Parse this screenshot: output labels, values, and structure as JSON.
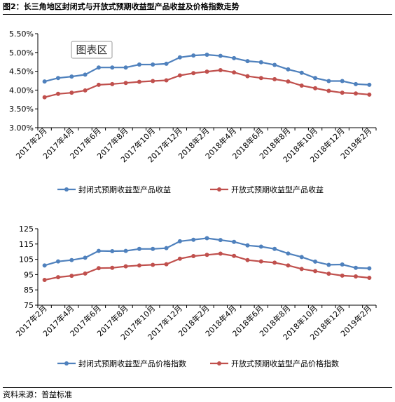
{
  "figure": {
    "title": "图2：长三角地区封闭式与开放式预期收益型产品收益及价格指数走势",
    "source": "资料来源：普益标准"
  },
  "watermark": "图表区",
  "chart_data": [
    {
      "type": "line",
      "categories": [
        "2017年2月",
        "2017年3月",
        "2017年4月",
        "2017年5月",
        "2017年6月",
        "2017年7月",
        "2017年8月",
        "2017年9月",
        "2017年10月",
        "2017年11月",
        "2017年12月",
        "2018年1月",
        "2018年2月",
        "2018年3月",
        "2018年4月",
        "2018年5月",
        "2018年6月",
        "2018年7月",
        "2018年8月",
        "2018年9月",
        "2018年10月",
        "2018年11月",
        "2018年12月",
        "2019年1月",
        "2019年2月"
      ],
      "tick_labels": [
        "2017年2月",
        "",
        "2017年4月",
        "",
        "2017年6月",
        "",
        "2017年8月",
        "",
        "2017年10月",
        "",
        "2017年12月",
        "",
        "2018年2月",
        "",
        "2018年4月",
        "",
        "2018年6月",
        "",
        "2018年8月",
        "",
        "2018年10月",
        "",
        "2018年12月",
        "",
        "2019年2月"
      ],
      "ylim": [
        3.0,
        5.5
      ],
      "yticks": [
        "3.00%",
        "3.50%",
        "4.00%",
        "4.50%",
        "5.00%",
        "5.50%"
      ],
      "grid": false,
      "legend_position": "bottom",
      "series": [
        {
          "name": "封闭式预期收益型产品收益",
          "color": "#4f81bd",
          "values": [
            4.23,
            4.32,
            4.36,
            4.41,
            4.6,
            4.6,
            4.6,
            4.68,
            4.68,
            4.7,
            4.87,
            4.92,
            4.94,
            4.91,
            4.85,
            4.77,
            4.74,
            4.67,
            4.55,
            4.46,
            4.32,
            4.24,
            4.24,
            4.16,
            4.14
          ]
        },
        {
          "name": "开放式预期收益型产品收益",
          "color": "#c0504d",
          "values": [
            3.81,
            3.9,
            3.93,
            3.99,
            4.14,
            4.16,
            4.19,
            4.22,
            4.24,
            4.26,
            4.39,
            4.45,
            4.49,
            4.53,
            4.47,
            4.37,
            4.32,
            4.29,
            4.23,
            4.12,
            4.05,
            3.98,
            3.93,
            3.91,
            3.88
          ]
        }
      ]
    },
    {
      "type": "line",
      "categories": [
        "2017年2月",
        "2017年3月",
        "2017年4月",
        "2017年5月",
        "2017年6月",
        "2017年7月",
        "2017年8月",
        "2017年9月",
        "2017年10月",
        "2017年11月",
        "2017年12月",
        "2018年1月",
        "2018年2月",
        "2018年3月",
        "2018年4月",
        "2018年5月",
        "2018年6月",
        "2018年7月",
        "2018年8月",
        "2018年9月",
        "2018年10月",
        "2018年11月",
        "2018年12月",
        "2019年1月",
        "2019年2月"
      ],
      "tick_labels": [
        "2017年2月",
        "",
        "2017年4月",
        "",
        "2017年6月",
        "",
        "2017年8月",
        "",
        "2017年10月",
        "",
        "2017年12月",
        "",
        "2018年2月",
        "",
        "2018年4月",
        "",
        "2018年6月",
        "",
        "2018年8月",
        "",
        "2018年10月",
        "",
        "2018年12月",
        "",
        "2019年2月"
      ],
      "ylim": [
        75,
        125
      ],
      "yticks": [
        "75",
        "85",
        "95",
        "105",
        "115",
        "125"
      ],
      "grid": false,
      "legend_position": "bottom",
      "series": [
        {
          "name": "封闭式预期收益型产品价格指数",
          "color": "#4f81bd",
          "values": [
            101.0,
            103.6,
            104.5,
            106.0,
            110.5,
            110.3,
            110.5,
            111.8,
            111.8,
            112.3,
            116.8,
            117.8,
            118.8,
            117.6,
            116.4,
            114.1,
            113.3,
            111.8,
            108.8,
            106.5,
            103.5,
            101.4,
            101.6,
            99.4,
            99.1
          ]
        },
        {
          "name": "开放式预期收益型产品价格指数",
          "color": "#c0504d",
          "values": [
            91.5,
            93.3,
            94.2,
            95.7,
            99.2,
            99.4,
            100.4,
            101.0,
            101.4,
            101.8,
            105.4,
            107.1,
            107.9,
            108.7,
            107.2,
            104.5,
            103.6,
            102.8,
            101.0,
            98.7,
            97.3,
            95.6,
            94.3,
            93.8,
            92.9
          ]
        }
      ]
    }
  ]
}
